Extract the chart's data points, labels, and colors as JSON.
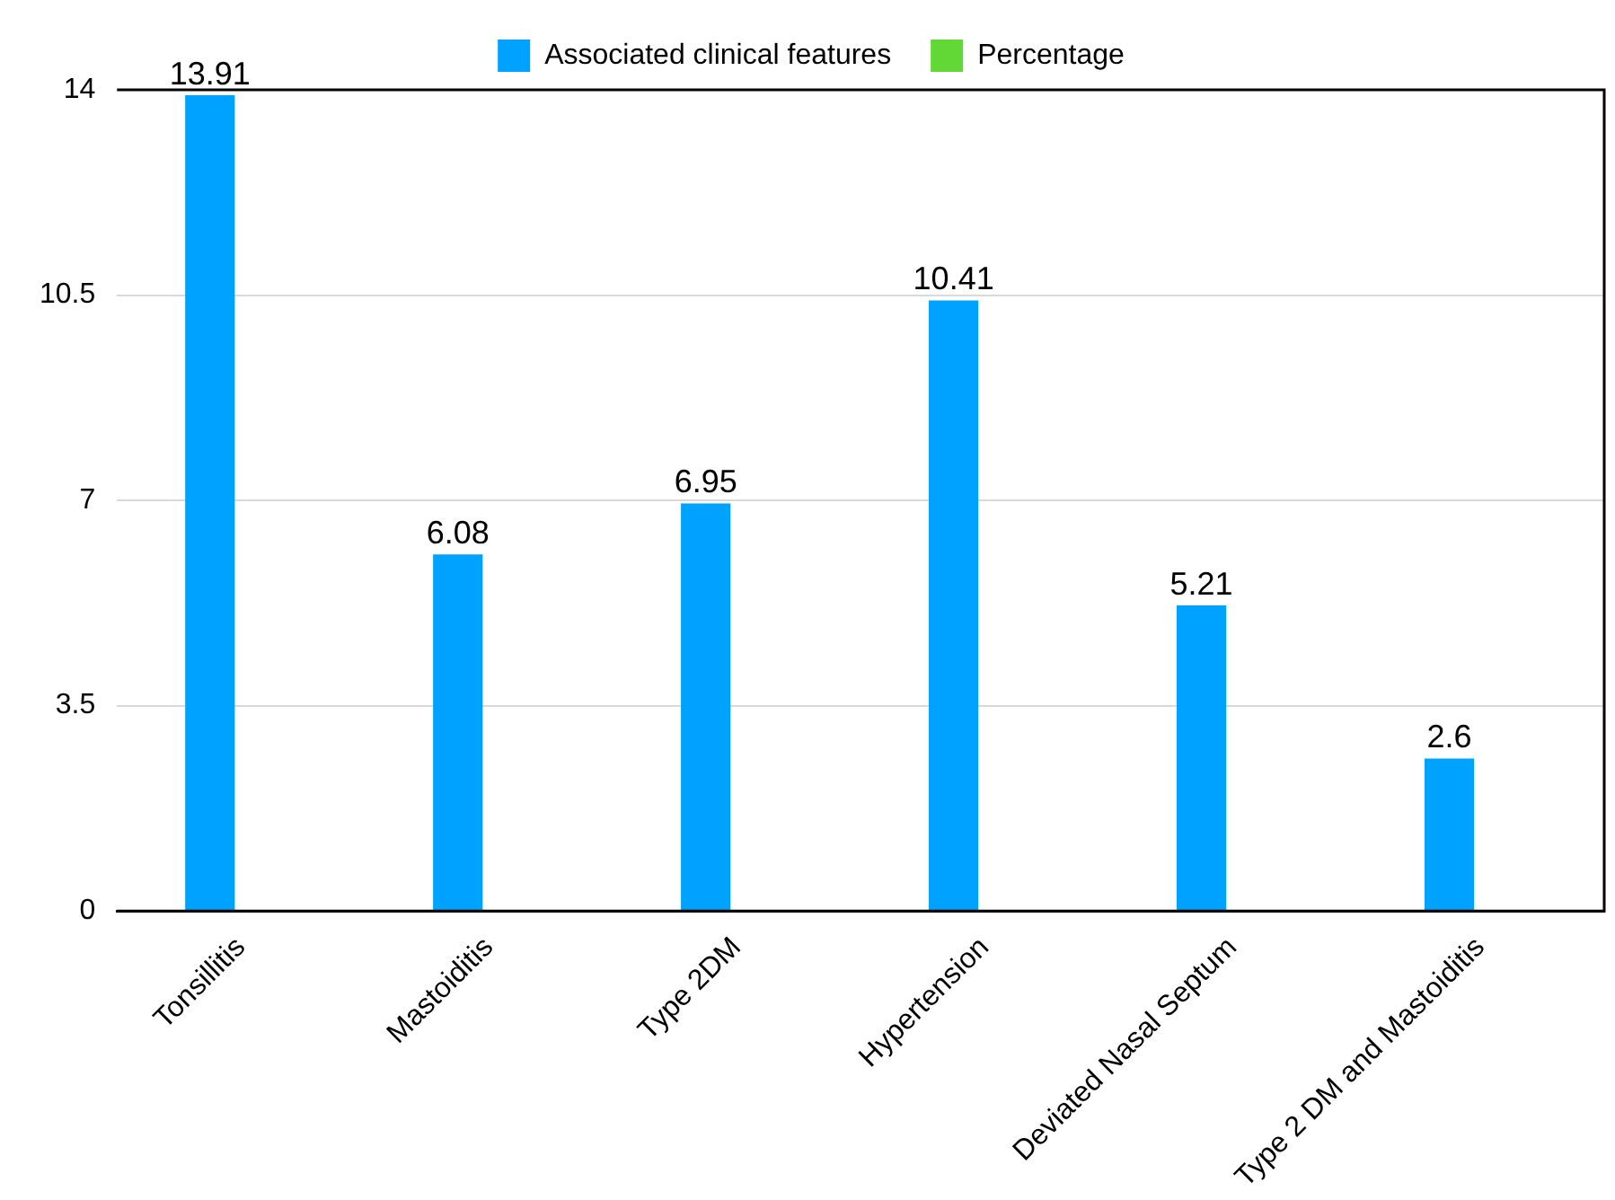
{
  "chart_data": {
    "type": "bar",
    "categories": [
      "Tonsillitis",
      "Mastoiditis",
      "Type 2DM",
      "Hypertension",
      "Deviated Nasal Septum",
      "Type 2 DM and Mastoiditis"
    ],
    "series": [
      {
        "name": "Associated clinical features",
        "color": "#00a2ff",
        "values": [
          13.91,
          6.08,
          6.95,
          10.41,
          5.21,
          2.6
        ]
      },
      {
        "name": "Percentage",
        "color": "#61d836",
        "values": [
          null,
          null,
          null,
          null,
          null,
          null
        ]
      }
    ],
    "ylim": [
      0,
      14
    ],
    "yticks": [
      0,
      3.5,
      7,
      10.5,
      14
    ],
    "grid": "y",
    "legend": "top",
    "data_labels": true
  }
}
